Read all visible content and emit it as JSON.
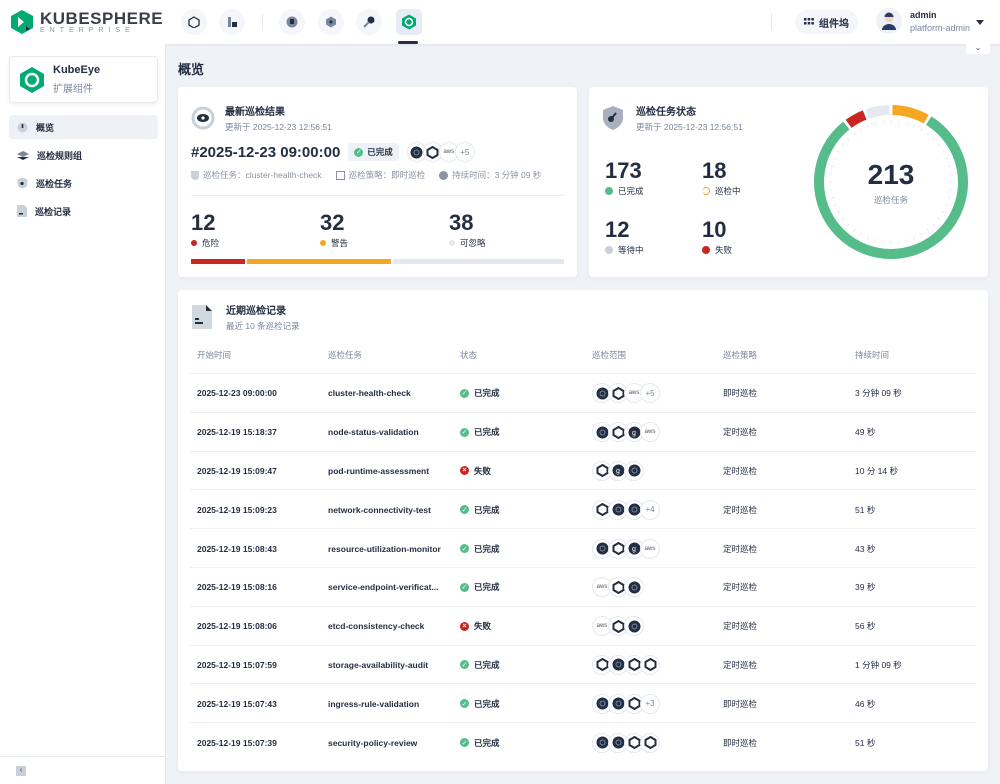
{
  "header": {
    "brand": "KUBESPHERE",
    "brand_sub": "ENTERPRISE",
    "component_dock": "组件坞",
    "user_name": "admin",
    "user_role": "platform-admin"
  },
  "sidebar": {
    "extension_name": "KubeEye",
    "extension_sub": "扩展组件",
    "items": [
      {
        "label": "概览",
        "icon": "dashboard-icon",
        "active": true
      },
      {
        "label": "巡检规则组",
        "icon": "layers-icon"
      },
      {
        "label": "巡检任务",
        "icon": "shield-icon"
      },
      {
        "label": "巡检记录",
        "icon": "document-icon"
      }
    ]
  },
  "page_title": "概览",
  "latest": {
    "title": "最新巡检结果",
    "updated": "更新于 2025-12-23 12:56:51",
    "run_id": "#2025-12-23 09:00:00",
    "status": "已完成",
    "clusters": [
      "k8s",
      "ocp",
      "aws",
      "+5"
    ],
    "task": "巡检任务：cluster-health-check",
    "strategy": "巡检策略：即时巡检",
    "duration": "持续时间：3 分钟 09 秒",
    "counts": [
      {
        "value": "12",
        "label": "危险",
        "color": "#ca2621"
      },
      {
        "value": "32",
        "label": "警告",
        "color": "#f5a623"
      },
      {
        "value": "38",
        "label": "可忽略",
        "color": "#e3e9ef"
      }
    ]
  },
  "task_status": {
    "title": "巡检任务状态",
    "updated": "更新于 2025-12-23 12:56:51",
    "total": "213",
    "total_label": "巡检任务",
    "items": [
      {
        "value": "173",
        "label": "已完成",
        "color": "#55bc8a"
      },
      {
        "value": "18",
        "label": "巡检中",
        "color": "#f5a623"
      },
      {
        "value": "12",
        "label": "等待中",
        "color": "#c8d0db"
      },
      {
        "value": "10",
        "label": "失败",
        "color": "#ca2621"
      }
    ]
  },
  "records": {
    "title": "近期巡检记录",
    "subtitle": "最近 10 条巡检记录",
    "columns": [
      "开始时间",
      "巡检任务",
      "状态",
      "巡检范围",
      "巡检策略",
      "持续时间"
    ],
    "rows": [
      {
        "start": "2025-12-23 09:00:00",
        "task": "cluster-health-check",
        "status": "已完成",
        "ok": true,
        "scope": [
          "k8s",
          "ocp",
          "aws",
          "+5"
        ],
        "strategy": "即时巡检",
        "duration": "3 分钟 09 秒"
      },
      {
        "start": "2025-12-19 15:18:37",
        "task": "node-status-validation",
        "status": "已完成",
        "ok": true,
        "scope": [
          "k8s",
          "ocp",
          "gke",
          "aws"
        ],
        "strategy": "定时巡检",
        "duration": "49 秒"
      },
      {
        "start": "2025-12-19 15:09:47",
        "task": "pod-runtime-assessment",
        "status": "失败",
        "ok": false,
        "scope": [
          "ocp",
          "gke",
          "k8s"
        ],
        "strategy": "定时巡检",
        "duration": "10 分 14 秒"
      },
      {
        "start": "2025-12-19 15:09:23",
        "task": "network-connectivity-test",
        "status": "已完成",
        "ok": true,
        "scope": [
          "ocp",
          "k8s",
          "k8s",
          "+4"
        ],
        "strategy": "定时巡检",
        "duration": "51 秒"
      },
      {
        "start": "2025-12-19 15:08:43",
        "task": "resource-utilization-monitor",
        "status": "已完成",
        "ok": true,
        "scope": [
          "k8s",
          "ocp",
          "gke",
          "aws"
        ],
        "strategy": "定时巡检",
        "duration": "43 秒"
      },
      {
        "start": "2025-12-19 15:08:16",
        "task": "service-endpoint-verificat...",
        "status": "已完成",
        "ok": true,
        "scope": [
          "aws",
          "ocp",
          "k8s"
        ],
        "strategy": "定时巡检",
        "duration": "39 秒"
      },
      {
        "start": "2025-12-19 15:08:06",
        "task": "etcd-consistency-check",
        "status": "失败",
        "ok": false,
        "scope": [
          "aws",
          "ocp",
          "k8s"
        ],
        "strategy": "定时巡检",
        "duration": "56 秒"
      },
      {
        "start": "2025-12-19 15:07:59",
        "task": "storage-availability-audit",
        "status": "已完成",
        "ok": true,
        "scope": [
          "ocp",
          "k8s",
          "ocp",
          "ocp"
        ],
        "strategy": "定时巡检",
        "duration": "1 分钟 09 秒"
      },
      {
        "start": "2025-12-19 15:07:43",
        "task": "ingress-rule-validation",
        "status": "已完成",
        "ok": true,
        "scope": [
          "k8s",
          "k8s",
          "ocp",
          "+3"
        ],
        "strategy": "即时巡检",
        "duration": "46 秒"
      },
      {
        "start": "2025-12-19 15:07:39",
        "task": "security-policy-review",
        "status": "已完成",
        "ok": true,
        "scope": [
          "k8s",
          "k8s",
          "ocp",
          "ocp"
        ],
        "strategy": "即时巡检",
        "duration": "51 秒"
      }
    ]
  }
}
